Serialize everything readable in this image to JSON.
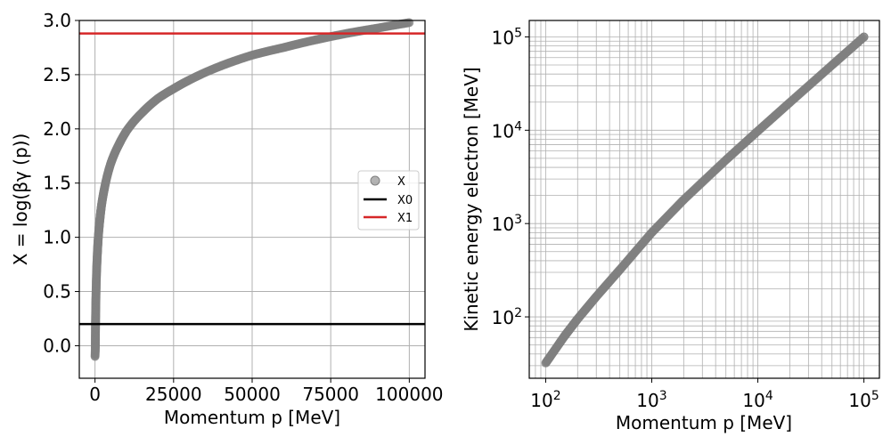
{
  "chart_data": [
    {
      "type": "scatter",
      "title": "",
      "xlabel": "Momentum p [MeV]",
      "ylabel": "X = log(βγ (p))",
      "xlim": [
        -5000,
        105000
      ],
      "ylim": [
        -0.3,
        3.0
      ],
      "x_ticks": [
        0,
        25000,
        50000,
        75000,
        100000
      ],
      "x_tick_labels": [
        "0",
        "25000",
        "50000",
        "75000",
        "100000"
      ],
      "y_ticks": [
        0.0,
        0.5,
        1.0,
        1.5,
        2.0,
        2.5,
        3.0
      ],
      "y_tick_labels": [
        "0.0",
        "0.5",
        "1.0",
        "1.5",
        "2.0",
        "2.5",
        "3.0"
      ],
      "grid": true,
      "legend_position": "center-right",
      "series": [
        {
          "name": "X",
          "kind": "scatter",
          "color": "#808080",
          "formula": "log10(p / 105.66)",
          "x": [
            100,
            150,
            200,
            300,
            500,
            750,
            1000,
            1500,
            2000,
            3000,
            5000,
            7500,
            10000,
            15000,
            20000,
            25000,
            30000,
            40000,
            50000,
            60000,
            70000,
            80000,
            90000,
            100000
          ],
          "y": [
            -0.02,
            0.15,
            0.28,
            0.45,
            0.68,
            0.85,
            0.98,
            1.15,
            1.28,
            1.45,
            1.68,
            1.85,
            1.98,
            2.15,
            2.28,
            2.37,
            2.45,
            2.58,
            2.68,
            2.75,
            2.82,
            2.88,
            2.93,
            2.98
          ]
        },
        {
          "name": "X0",
          "kind": "hline",
          "color": "#000000",
          "y": 0.2
        },
        {
          "name": "X1",
          "kind": "hline",
          "color": "#d62728",
          "y": 2.88
        }
      ]
    },
    {
      "type": "line",
      "title": "",
      "xlabel": "Momentum p [MeV]",
      "ylabel": "Kinetic energy electron [MeV]",
      "xscale": "log",
      "yscale": "log",
      "xlim": [
        70,
        140000
      ],
      "ylim": [
        22,
        150000
      ],
      "x_ticks": [
        100,
        1000,
        10000,
        100000
      ],
      "x_tick_labels": [
        "10^2",
        "10^3",
        "10^4",
        "10^5"
      ],
      "y_ticks": [
        100,
        1000,
        10000,
        100000
      ],
      "y_tick_labels": [
        "10^2",
        "10^3",
        "10^4",
        "10^5"
      ],
      "grid": true,
      "series": [
        {
          "color": "#808080",
          "x": [
            100,
            150,
            200,
            300,
            500,
            1000,
            2000,
            5000,
            10000,
            20000,
            50000,
            100000
          ],
          "y": [
            32,
            62,
            95,
            165,
            320,
            800,
            1800,
            4800,
            9800,
            19800,
            49800,
            99800
          ]
        }
      ]
    }
  ]
}
